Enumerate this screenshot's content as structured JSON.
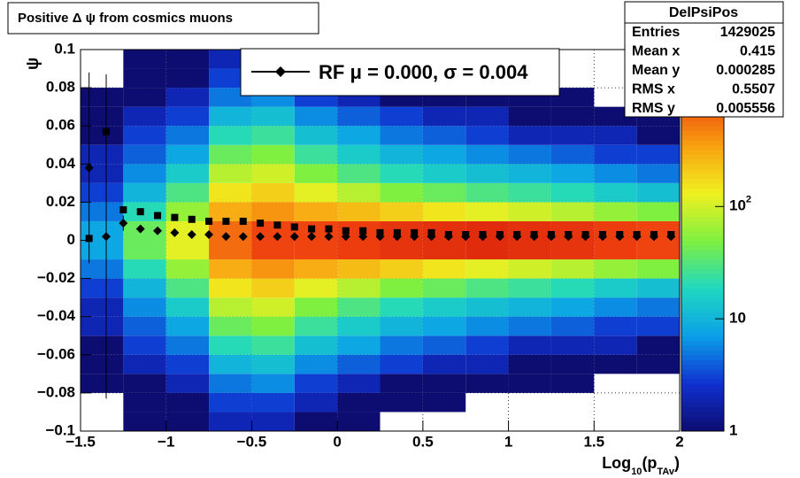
{
  "chart_data": {
    "type": "heatmap",
    "title": "Positive Δ ψ from cosmics muons",
    "y_label": "ψ",
    "x_label_parts": [
      "Log",
      "10",
      "(p",
      "TAv",
      ")"
    ],
    "xlim": [
      -1.5,
      2
    ],
    "ylim": [
      -0.1,
      0.1
    ],
    "xticks": [
      {
        "value": -1.5,
        "label": "−1.5"
      },
      {
        "value": -1,
        "label": "−1"
      },
      {
        "value": -0.5,
        "label": "−0.5"
      },
      0,
      0.5,
      1,
      1.5,
      2
    ],
    "yticks": [
      0.1,
      0.08,
      0.06,
      0.04,
      0.02,
      0,
      {
        "value": -0.02,
        "label": "−0.02"
      },
      {
        "value": -0.04,
        "label": "−0.04"
      },
      {
        "value": -0.06,
        "label": "−0.06"
      },
      {
        "value": -0.08,
        "label": "−0.08"
      },
      {
        "value": -0.1,
        "label": "−0.1"
      }
    ],
    "grid": true,
    "zlim": [
      1,
      2500
    ],
    "zlog": true,
    "zticks": [
      1,
      10,
      {
        "value": 100,
        "label": "10",
        "superscript": "2"
      }
    ],
    "colorscale": [
      "#0d0c70",
      "#1030d0",
      "#0aa0e8",
      "#20d8c0",
      "#80f040",
      "#f0f020",
      "#f8a010",
      "#f04010",
      "#c81008"
    ],
    "xbins": [
      -1.5,
      -1.25,
      -1,
      -0.75,
      -0.5,
      -0.25,
      0,
      0.25,
      0.5,
      0.75,
      1,
      1.25,
      1.5,
      1.75,
      2
    ],
    "ybins": [
      -0.1,
      -0.09,
      -0.08,
      -0.07,
      -0.06,
      -0.05,
      -0.04,
      -0.03,
      -0.02,
      -0.01,
      0,
      0.01,
      0.02,
      0.03,
      0.04,
      0.05,
      0.06,
      0.07,
      0.08,
      0.09,
      0.1
    ],
    "z": [
      [
        0,
        0,
        1,
        1,
        1,
        2,
        2,
        3,
        5,
        8,
        8,
        5,
        3,
        2,
        2,
        1,
        1,
        1,
        0,
        0
      ],
      [
        1,
        1,
        1,
        2,
        3,
        4,
        6,
        10,
        20,
        40,
        40,
        20,
        10,
        6,
        4,
        3,
        2,
        1,
        1,
        1
      ],
      [
        1,
        1,
        2,
        3,
        5,
        8,
        15,
        30,
        60,
        120,
        120,
        60,
        30,
        15,
        8,
        5,
        3,
        2,
        1,
        1
      ],
      [
        2,
        3,
        5,
        10,
        20,
        40,
        80,
        150,
        300,
        600,
        600,
        300,
        150,
        80,
        40,
        20,
        10,
        5,
        3,
        2
      ],
      [
        2,
        3,
        6,
        12,
        25,
        50,
        100,
        200,
        400,
        900,
        900,
        400,
        200,
        100,
        50,
        25,
        12,
        6,
        3,
        2
      ],
      [
        1,
        2,
        3,
        6,
        12,
        25,
        50,
        120,
        300,
        900,
        900,
        300,
        120,
        50,
        25,
        12,
        6,
        3,
        2,
        1
      ],
      [
        1,
        1,
        2,
        4,
        8,
        15,
        30,
        80,
        250,
        1000,
        1000,
        250,
        80,
        30,
        15,
        8,
        4,
        2,
        1,
        1
      ],
      [
        0,
        1,
        1,
        3,
        5,
        10,
        20,
        50,
        200,
        1200,
        1200,
        200,
        50,
        20,
        10,
        5,
        3,
        1,
        1,
        0
      ],
      [
        0,
        1,
        1,
        2,
        4,
        8,
        15,
        40,
        150,
        1300,
        1300,
        150,
        40,
        15,
        8,
        4,
        2,
        1,
        1,
        0
      ],
      [
        0,
        0,
        1,
        2,
        3,
        6,
        12,
        30,
        120,
        1400,
        1400,
        120,
        30,
        12,
        6,
        3,
        2,
        1,
        0,
        0
      ],
      [
        0,
        0,
        1,
        1,
        2,
        5,
        10,
        25,
        100,
        1300,
        1300,
        100,
        25,
        10,
        5,
        2,
        1,
        1,
        0,
        0
      ],
      [
        0,
        0,
        1,
        1,
        2,
        4,
        8,
        20,
        80,
        1200,
        1200,
        80,
        20,
        8,
        4,
        2,
        1,
        1,
        0,
        0
      ],
      [
        0,
        0,
        0,
        1,
        2,
        3,
        6,
        15,
        60,
        1000,
        1000,
        60,
        15,
        6,
        3,
        2,
        1,
        0,
        0,
        0
      ],
      [
        0,
        0,
        0,
        1,
        1,
        3,
        5,
        12,
        50,
        900,
        900,
        50,
        12,
        5,
        3,
        1,
        1,
        0,
        0,
        0
      ]
    ],
    "x": [
      -1.45,
      -1.35,
      -1.25,
      -1.15,
      -1.05,
      -0.95,
      -0.85,
      -0.75,
      -0.65,
      -0.55,
      -0.45,
      -0.35,
      -0.25,
      -0.15,
      -0.05,
      0.05,
      0.15,
      0.25,
      0.35,
      0.45,
      0.55,
      0.65,
      0.75,
      0.85,
      0.95,
      1.05,
      1.15,
      1.25,
      1.35,
      1.45,
      1.55,
      1.65,
      1.75,
      1.85,
      1.95
    ],
    "series": [
      {
        "name": "RF μ =  0.000, σ =   0.004",
        "marker": "diamond",
        "color": "#000000",
        "values": [
          0.038,
          0.002,
          0.009,
          0.006,
          0.005,
          0.004,
          0.003,
          0.003,
          0.002,
          0.002,
          0.002,
          0.002,
          0.002,
          0.002,
          0.002,
          0.002,
          0.002,
          0.002,
          0.002,
          0.002,
          0.002,
          0.002,
          0.002,
          0.002,
          0.002,
          0.002,
          0.002,
          0.002,
          0.002,
          0.002,
          0.002,
          0.002,
          0.002,
          0.002,
          0.002
        ],
        "errors": [
          0.05,
          0.085,
          0.004,
          0.002,
          0.001,
          0,
          0,
          0,
          0,
          0,
          0,
          0,
          0,
          0,
          0,
          0,
          0,
          0,
          0,
          0,
          0,
          0,
          0,
          0,
          0,
          0,
          0,
          0,
          0,
          0,
          0,
          0,
          0,
          0,
          0
        ]
      },
      {
        "marker": "square",
        "color": "#000000",
        "values": [
          0.001,
          0.057,
          0.016,
          0.015,
          0.013,
          0.012,
          0.011,
          0.01,
          0.01,
          0.01,
          0.009,
          0.008,
          0.007,
          0.006,
          0.006,
          0.005,
          0.005,
          0.004,
          0.004,
          0.004,
          0.004,
          0.003,
          0.003,
          0.003,
          0.003,
          0.003,
          0.003,
          0.003,
          0.003,
          0.003,
          0.003,
          0.003,
          0.003,
          0.003,
          0.003
        ]
      }
    ],
    "stats": {
      "title": "DelPsiPos",
      "rows": [
        [
          "Entries",
          "1429025"
        ],
        [
          "Mean x",
          "0.415"
        ],
        [
          "Mean y",
          "0.000285"
        ],
        [
          "RMS x",
          "0.5507"
        ],
        [
          "RMS y",
          "0.005556"
        ]
      ]
    }
  }
}
